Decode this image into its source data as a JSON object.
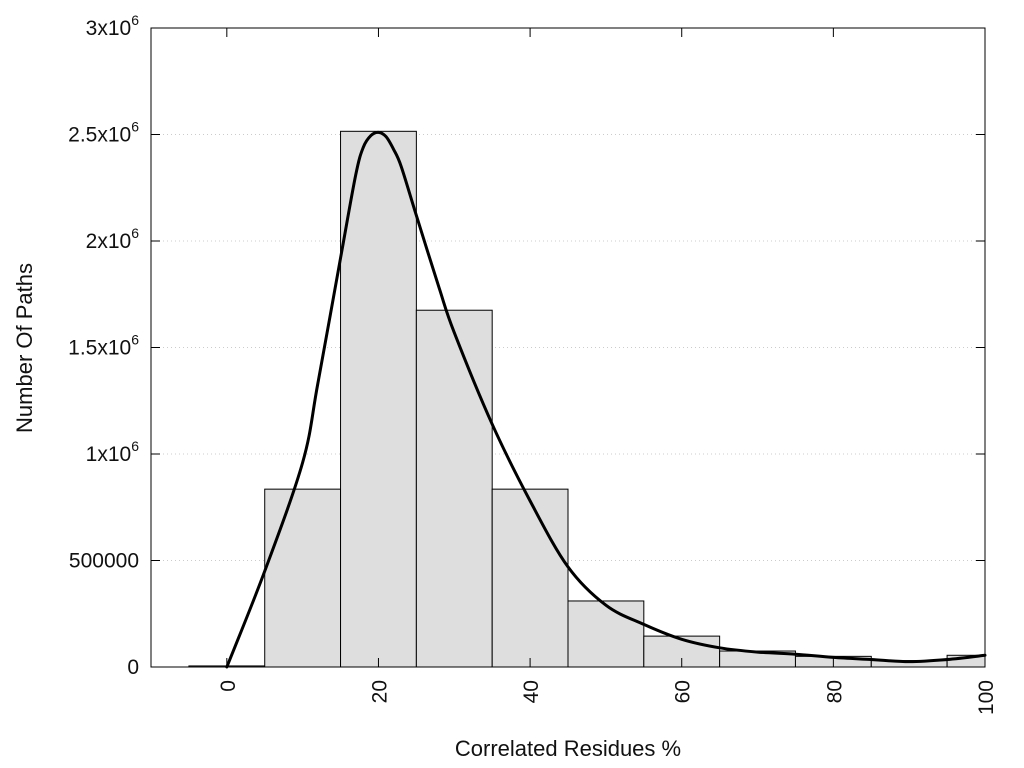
{
  "chart_data": {
    "type": "bar",
    "xlabel": "Correlated Residues %",
    "ylabel": "Number Of Paths",
    "xlim": [
      -10,
      100
    ],
    "ylim": [
      0,
      3000000
    ],
    "grid": "horizontal-dotted",
    "x_ticks": [
      {
        "value": 0,
        "label": "0"
      },
      {
        "value": 20,
        "label": "20"
      },
      {
        "value": 40,
        "label": "40"
      },
      {
        "value": 60,
        "label": "60"
      },
      {
        "value": 80,
        "label": "80"
      },
      {
        "value": 100,
        "label": "100"
      }
    ],
    "y_ticks": [
      {
        "value": 0,
        "base": "0",
        "exp": ""
      },
      {
        "value": 500000,
        "base": "500000",
        "exp": ""
      },
      {
        "value": 1000000,
        "base": "1x10",
        "exp": "6"
      },
      {
        "value": 1500000,
        "base": "1.5x10",
        "exp": "6"
      },
      {
        "value": 2000000,
        "base": "2x10",
        "exp": "6"
      },
      {
        "value": 2500000,
        "base": "2.5x10",
        "exp": "6"
      },
      {
        "value": 3000000,
        "base": "3x10",
        "exp": "6"
      }
    ],
    "bar_width": 10,
    "bars": [
      {
        "x": 0,
        "value": 5000
      },
      {
        "x": 10,
        "value": 835000
      },
      {
        "x": 20,
        "value": 2515000
      },
      {
        "x": 30,
        "value": 1675000
      },
      {
        "x": 40,
        "value": 835000
      },
      {
        "x": 50,
        "value": 310000
      },
      {
        "x": 60,
        "value": 145000
      },
      {
        "x": 70,
        "value": 75000
      },
      {
        "x": 80,
        "value": 50000
      },
      {
        "x": 90,
        "value": 30000
      },
      {
        "x": 100,
        "value": 55000
      }
    ],
    "curve": {
      "x": [
        0,
        5,
        10,
        12,
        15,
        17,
        18,
        19,
        20,
        21,
        22,
        23,
        25,
        28,
        30,
        35,
        40,
        45,
        50,
        55,
        60,
        65,
        70,
        75,
        80,
        85,
        90,
        95,
        100
      ],
      "y": [
        0,
        450000,
        960000,
        1330000,
        1920000,
        2310000,
        2440000,
        2495000,
        2510000,
        2490000,
        2430000,
        2350000,
        2120000,
        1780000,
        1570000,
        1140000,
        780000,
        470000,
        290000,
        200000,
        130000,
        90000,
        70000,
        60000,
        45000,
        35000,
        25000,
        35000,
        55000
      ]
    },
    "colors": {
      "bar_fill": "#dedede",
      "bar_stroke": "#000000",
      "curve": "#000000",
      "grid": "#cccccc",
      "frame": "#000000"
    }
  }
}
